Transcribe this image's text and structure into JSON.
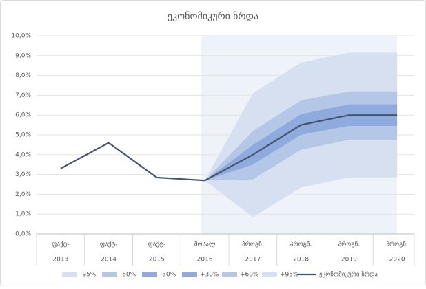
{
  "chart_data": {
    "type": "fan",
    "title": "ეკონომიკური ზრდა",
    "categories": [
      [
        "ფაქტ-",
        "2013"
      ],
      [
        "ფაქტ-",
        "2014"
      ],
      [
        "ფაქტ-",
        "2015"
      ],
      [
        "მოსალ",
        "2016"
      ],
      [
        "პროგნ.",
        "2017"
      ],
      [
        "პროგნ.",
        "2018"
      ],
      [
        "პროგნ.",
        "2019"
      ],
      [
        "პროგნ.",
        "2020"
      ]
    ],
    "ylim": [
      0,
      10
    ],
    "yticks": [
      {
        "value": 0,
        "label": "0,0%"
      },
      {
        "value": 1,
        "label": "1,0%"
      },
      {
        "value": 2,
        "label": "2,0%"
      },
      {
        "value": 3,
        "label": "3,0%"
      },
      {
        "value": 4,
        "label": "4,0%"
      },
      {
        "value": 5,
        "label": "5,0%"
      },
      {
        "value": 6,
        "label": "6,0%"
      },
      {
        "value": 7,
        "label": "7,0%"
      },
      {
        "value": 8,
        "label": "8,0%"
      },
      {
        "value": 9,
        "label": "9,0%"
      },
      {
        "value": 10,
        "label": "10,0%"
      }
    ],
    "grid": true,
    "series": [
      {
        "name": "-95%",
        "color": "#d6e0f0",
        "values": [
          null,
          null,
          null,
          2.7,
          0.85,
          2.35,
          2.85,
          2.85
        ]
      },
      {
        "name": "-60%",
        "color": "#b4c7e7",
        "values": [
          null,
          null,
          null,
          2.7,
          2.75,
          4.25,
          4.75,
          4.75
        ]
      },
      {
        "name": "-30%",
        "color": "#8faadc",
        "values": [
          null,
          null,
          null,
          2.7,
          3.5,
          5.0,
          5.45,
          5.45
        ]
      },
      {
        "name": "+30%",
        "color": "#8faadc",
        "values": [
          null,
          null,
          null,
          2.7,
          4.5,
          6.05,
          6.55,
          6.55
        ]
      },
      {
        "name": "+60%",
        "color": "#b4c7e7",
        "values": [
          null,
          null,
          null,
          2.7,
          5.2,
          6.75,
          7.2,
          7.2
        ]
      },
      {
        "name": "+95%",
        "color": "#d6e0f0",
        "values": [
          null,
          null,
          null,
          2.7,
          7.1,
          8.65,
          9.15,
          9.15
        ]
      },
      {
        "name": "ეკონომიკური ზრდა",
        "color": "#44546a",
        "values": [
          3.3,
          4.6,
          2.85,
          2.7,
          4.0,
          5.5,
          6.0,
          6.0
        ]
      }
    ]
  }
}
